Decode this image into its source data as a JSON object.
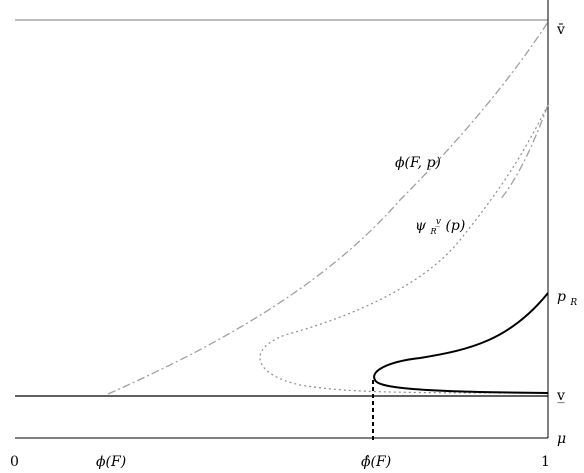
{
  "labels": {
    "v_bar": "v̄",
    "v_under": "v̲",
    "mu": "μ",
    "p_r_star": "p",
    "p_r_star_sub": "R",
    "p_r_star_sup": "*",
    "phi_fp": "ϕ(F, p)",
    "psi": "ψ",
    "psi_sub": "R",
    "psi_sup": "v̲",
    "psi_arg": "(p)"
  },
  "ticks": {
    "zero": "0",
    "phi_f": "ϕ(F)",
    "phi_hat_f": "ϕ̂(F)",
    "one": "1"
  },
  "colors": {
    "axis": "#000000",
    "top_line": "#7a7a7a",
    "dashdot": "#a0a0a0",
    "dotted": "#8c8c8c",
    "solid": "#000000"
  }
}
